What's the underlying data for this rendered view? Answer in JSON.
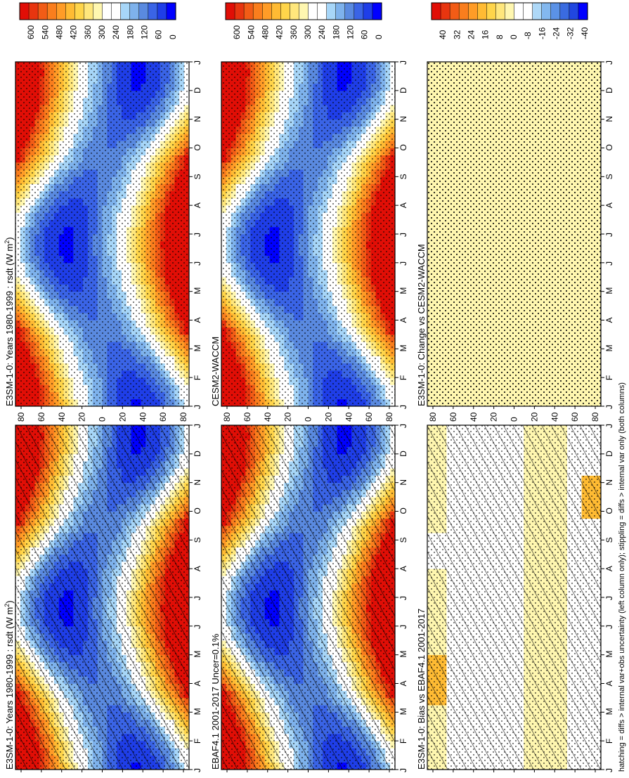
{
  "months": [
    "J",
    "F",
    "M",
    "A",
    "M",
    "J",
    "J",
    "A",
    "S",
    "O",
    "N",
    "D",
    "J"
  ],
  "lat_labels": [
    "80",
    "60",
    "40",
    "20",
    "0",
    "20",
    "40",
    "60",
    "80"
  ],
  "footer": "hatching = diffs > internal var+obs uncertainty (left column only); stippling = diffs > internal var only (both columns)",
  "colors": {
    "abs_scale": [
      "#0000ff",
      "#1f3ee8",
      "#3a64e6",
      "#5a8ae0",
      "#7eb2ec",
      "#a7d6f8",
      "#ffffff",
      "#ffffff",
      "#fff7b0",
      "#ffe77c",
      "#ffd54a",
      "#ffbb33",
      "#ff9c27",
      "#fa7e1d",
      "#f25c16",
      "#e8350f",
      "#e10e06"
    ],
    "diff_scale": [
      "#0000ff",
      "#2147e0",
      "#3a6be0",
      "#5b92e6",
      "#83b8ef",
      "#aed8f7",
      "#ffffff",
      "#ffffff",
      "#fff7b0",
      "#ffe77c",
      "#ffd54a",
      "#ffbb33",
      "#ff9c27",
      "#fa7e1d",
      "#f25c16",
      "#e8350f",
      "#e10e06"
    ]
  },
  "chart_data": [
    {
      "type": "heatmap",
      "panel": "left-top",
      "title": "E3SM-1-0: Years 1980-1999 : rsdt (W m",
      "title_sup": "2",
      "title_end": ")",
      "field": "rsdt",
      "x": "month",
      "y": "latitude",
      "ylim": [
        -90,
        90
      ],
      "colorbar_ticks": [
        "600",
        "540",
        "480",
        "420",
        "360",
        "300",
        "240",
        "180",
        "120",
        "60",
        "0"
      ],
      "overlay": "hatching+stippling"
    },
    {
      "type": "heatmap",
      "panel": "left-middle",
      "title": "EBAF4.1 2001-2017 Uncer=0.1%",
      "field": "rsdt",
      "x": "month",
      "y": "latitude",
      "ylim": [
        -90,
        90
      ],
      "colorbar_ticks": [
        "600",
        "540",
        "480",
        "420",
        "360",
        "300",
        "240",
        "180",
        "120",
        "60",
        "0"
      ],
      "overlay": "hatching+stippling"
    },
    {
      "type": "heatmap",
      "panel": "left-bottom",
      "title": "E3SM-1-0: Bias vs EBAF4.1 2001-2017",
      "field": "bias",
      "x": "month",
      "y": "latitude",
      "ylim": [
        -90,
        90
      ],
      "colorbar_ticks": [
        "40",
        "32",
        "24",
        "16",
        "8",
        "0",
        "-8",
        "-16",
        "-24",
        "-32",
        "-40"
      ],
      "overlay": "hatching+stippling"
    },
    {
      "type": "heatmap",
      "panel": "right-top",
      "title": "E3SM-1-0: Years 1980-1999 : rsdt (W m",
      "title_sup": "2",
      "title_end": ")",
      "field": "rsdt",
      "x": "month",
      "y": "latitude",
      "ylim": [
        -90,
        90
      ],
      "colorbar_ticks": [
        "600",
        "540",
        "480",
        "420",
        "360",
        "300",
        "240",
        "180",
        "120",
        "60",
        "0"
      ],
      "overlay": "stippling"
    },
    {
      "type": "heatmap",
      "panel": "right-middle",
      "title": "CESM2-WACCM",
      "field": "rsdt",
      "x": "month",
      "y": "latitude",
      "ylim": [
        -90,
        90
      ],
      "colorbar_ticks": [
        "600",
        "540",
        "480",
        "420",
        "360",
        "300",
        "240",
        "180",
        "120",
        "60",
        "0"
      ],
      "overlay": "stippling"
    },
    {
      "type": "heatmap",
      "panel": "right-bottom",
      "title": "E3SM-1-0: Change vs CESM2-WACCM",
      "field": "change",
      "x": "month",
      "y": "latitude",
      "ylim": [
        -90,
        90
      ],
      "colorbar_ticks": [
        "40",
        "32",
        "24",
        "16",
        "8",
        "0",
        "-8",
        "-16",
        "-24",
        "-32",
        "-40"
      ],
      "overlay": "stippling"
    }
  ]
}
